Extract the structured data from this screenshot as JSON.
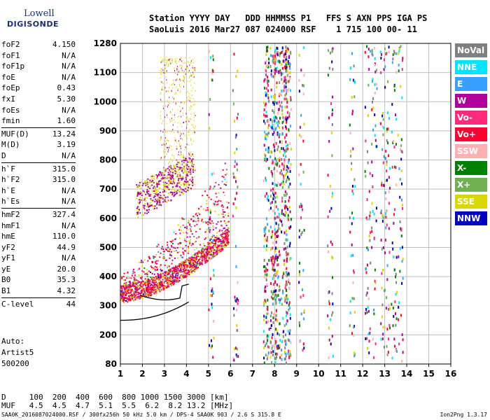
{
  "logo": {
    "line1": "Lowell",
    "line2": "DIGISONDE"
  },
  "header": {
    "line1": "Station YYYY DAY   DDD HHMMSS P1   FFS S AXN PPS IGA PS",
    "line2": "SaoLuis 2016 Mar27 087 024000 RSF    1 715 100 00- 11"
  },
  "params": {
    "group1": [
      {
        "label": "foF2",
        "value": "4.150"
      },
      {
        "label": "foF1",
        "value": "N/A"
      },
      {
        "label": "foF1p",
        "value": "N/A"
      },
      {
        "label": "foE",
        "value": "N/A"
      },
      {
        "label": "foEp",
        "value": "0.43"
      },
      {
        "label": "fxI",
        "value": "5.30"
      },
      {
        "label": "foEs",
        "value": "N/A"
      },
      {
        "label": "fmin",
        "value": "1.60"
      }
    ],
    "group2": [
      {
        "label": "MUF(D)",
        "value": "13.24"
      },
      {
        "label": "M(D)",
        "value": "3.19"
      },
      {
        "label": "D",
        "value": "N/A"
      }
    ],
    "group3": [
      {
        "label": "h`F",
        "value": "315.0"
      },
      {
        "label": "h`F2",
        "value": "315.0"
      },
      {
        "label": "h`E",
        "value": "N/A"
      },
      {
        "label": "h`Es",
        "value": "N/A"
      }
    ],
    "group4": [
      {
        "label": "hmF2",
        "value": "327.4"
      },
      {
        "label": "hmF1",
        "value": "N/A"
      },
      {
        "label": "hmE",
        "value": "110.0"
      },
      {
        "label": "yF2",
        "value": "44.9"
      },
      {
        "label": "yF1",
        "value": "N/A"
      },
      {
        "label": "yE",
        "value": "20.0"
      },
      {
        "label": "B0",
        "value": "35.3"
      },
      {
        "label": "B1",
        "value": "4.32"
      }
    ],
    "group5": [
      {
        "label": "C-level",
        "value": "44"
      }
    ]
  },
  "auto": {
    "line1": "Auto:",
    "line2": "Artist5",
    "line3": "500200"
  },
  "legend": [
    {
      "label": "NoVal",
      "color": "#808080"
    },
    {
      "label": "NNE",
      "color": "#00e5ff"
    },
    {
      "label": "E",
      "color": "#3aa0ff"
    },
    {
      "label": "W",
      "color": "#b0009a"
    },
    {
      "label": "Vo-",
      "color": "#ff2a7a"
    },
    {
      "label": "Vo+",
      "color": "#ff0033"
    },
    {
      "label": "SSW",
      "color": "#ffb0b0"
    },
    {
      "label": "X-",
      "color": "#008000"
    },
    {
      "label": "X+",
      "color": "#70b050"
    },
    {
      "label": "SSE",
      "color": "#d8d800"
    },
    {
      "label": "NNW",
      "color": "#0000c0"
    }
  ],
  "chart_data": {
    "type": "scatter",
    "x_ticks": [
      "1",
      "2",
      "3",
      "4",
      "5",
      "6",
      "7",
      "8",
      "9",
      "10",
      "11",
      "12",
      "13",
      "14",
      "15",
      "16"
    ],
    "y_ticks": [
      "80",
      "200",
      "300",
      "400",
      "500",
      "600",
      "700",
      "800",
      "900",
      "1000",
      "1100",
      "1280"
    ],
    "xlim": [
      1,
      16
    ],
    "ylim_label": [
      80,
      1280
    ]
  },
  "footer": {
    "line1": "D     100  200  400  600  800 1000 1500 3000 [km]",
    "line2": "MUF   4.5  4.5  4.7  5.1  5.5  6.2  8.2 13.2 [MHz]",
    "small_left": "SAA0K_2016087024000.RSF / 300fx256h 50 kHz 5.0 km / DPS-4 SAA0K 903 / 2.6 S 315.8 E",
    "small_right": "Ion2Png 1.3.17"
  }
}
